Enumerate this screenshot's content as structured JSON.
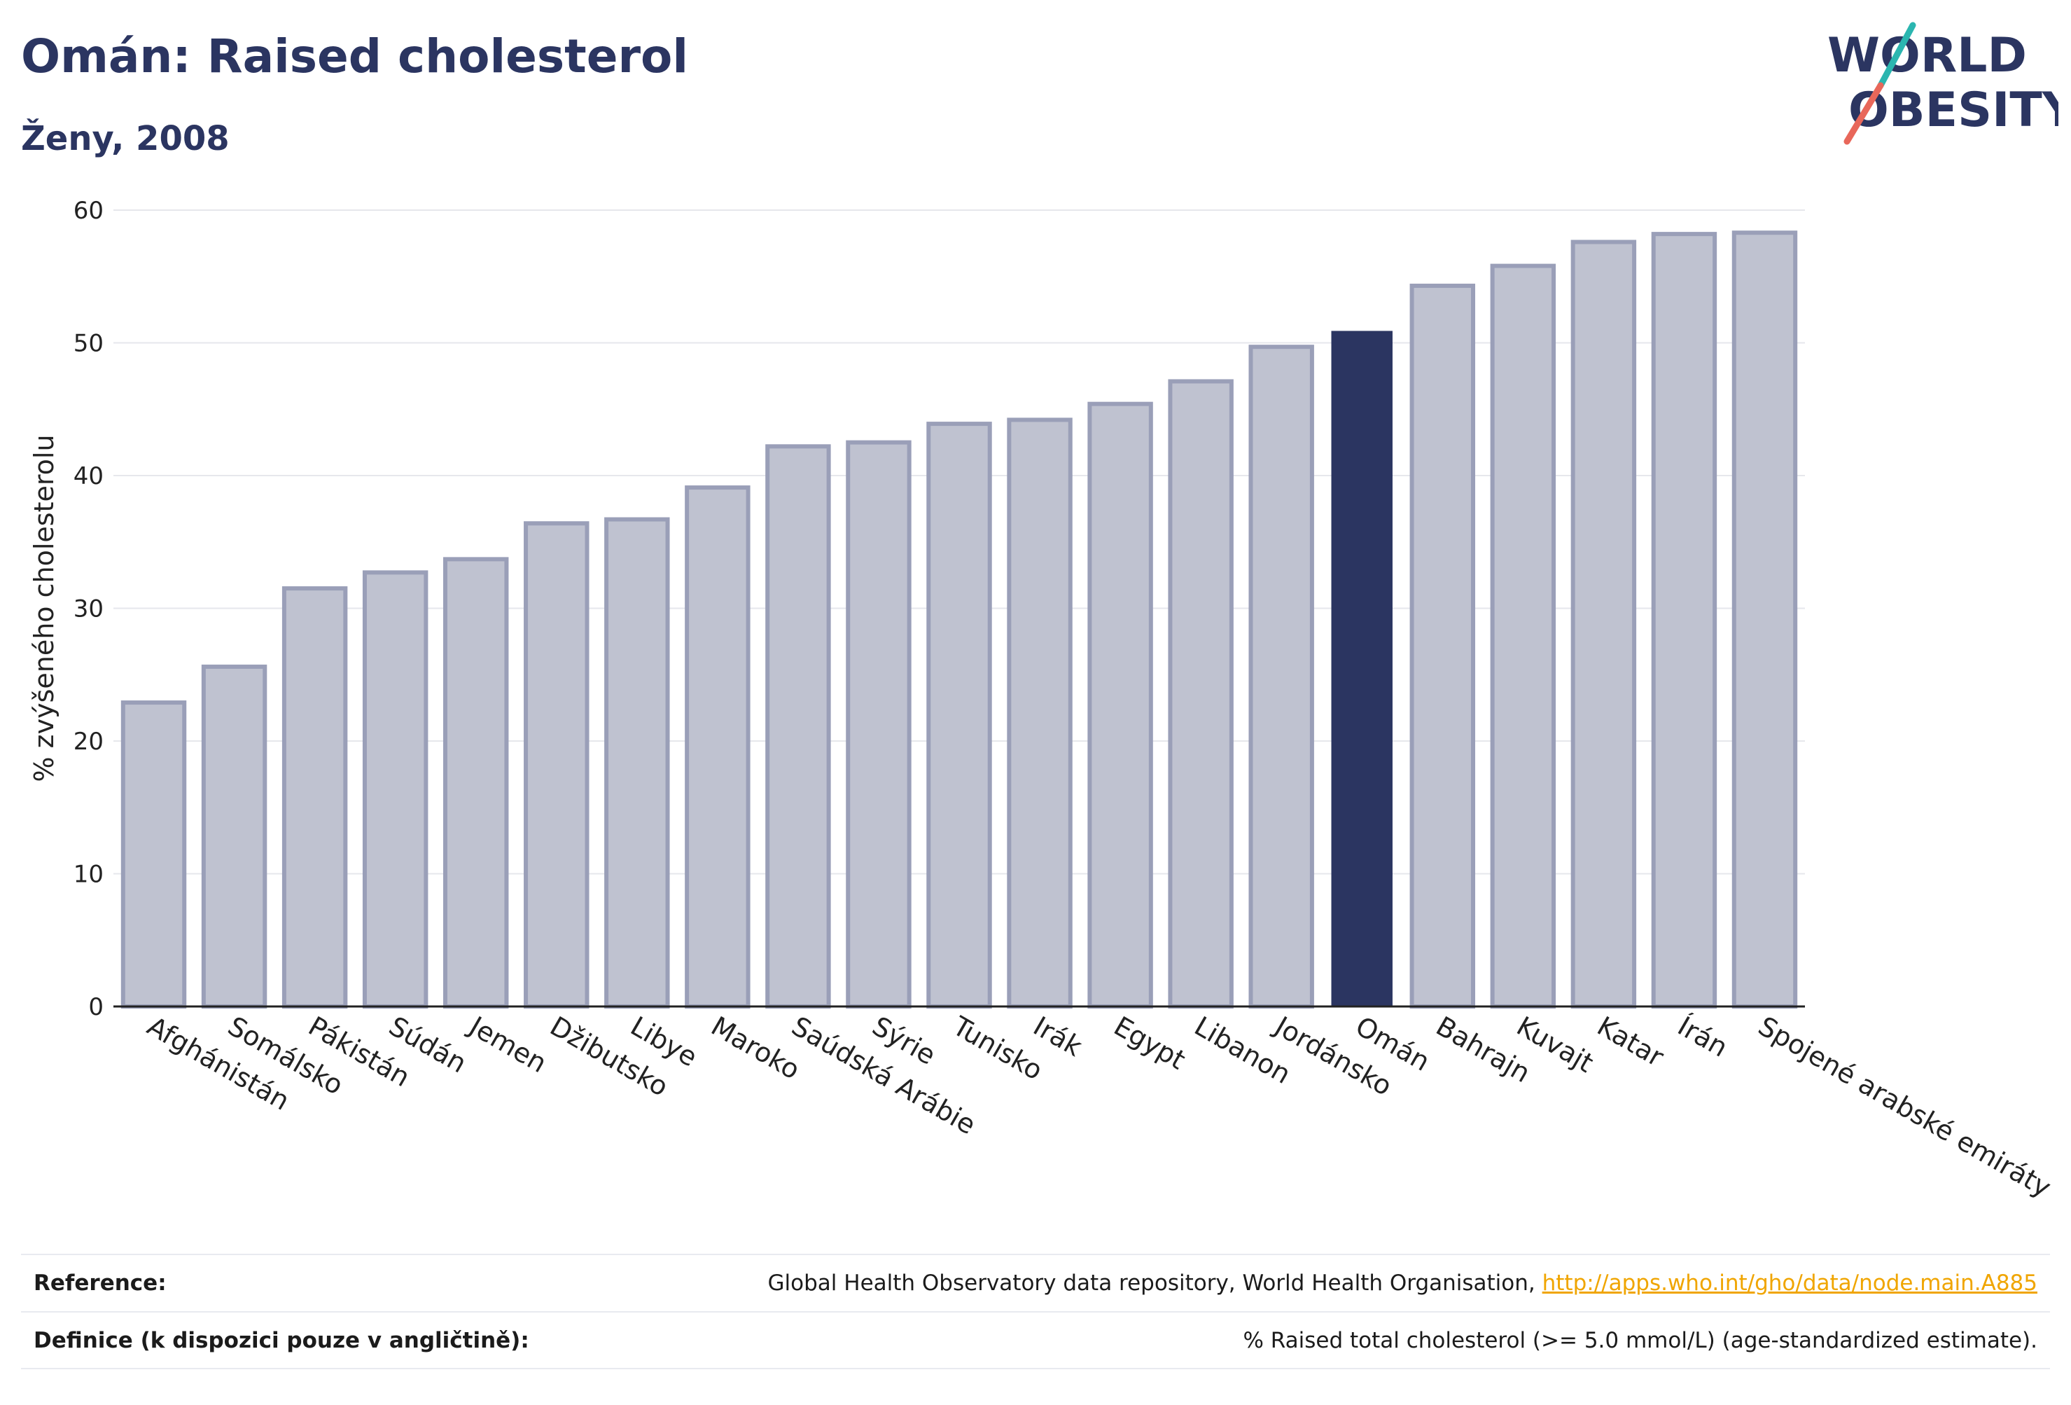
{
  "header": {
    "title": "Omán: Raised cholesterol",
    "subtitle": "Ženy, 2008",
    "logo_text": "WORLD OBESITY"
  },
  "colors": {
    "highlight_bar": "#2b3561",
    "other_bar_fill": "#bfc2d0",
    "other_bar_stroke": "#9a9fb8",
    "title": "#2b3561",
    "link": "#f0a500",
    "logo_accent_teal": "#2bb6b0",
    "logo_accent_red": "#e8675a"
  },
  "chart_data": {
    "type": "bar",
    "ylabel": "% zvýšeného cholesterolu",
    "ylim": [
      0,
      60
    ],
    "yticks": [
      0,
      10,
      20,
      30,
      40,
      50,
      60
    ],
    "grid": true,
    "highlight": "Omán",
    "categories": [
      "Afghánistán",
      "Somálsko",
      "Pákistán",
      "Súdán",
      "Jemen",
      "Džibutsko",
      "Libye",
      "Maroko",
      "Saúdská Arábie",
      "Sýrie",
      "Tunisko",
      "Irák",
      "Egypt",
      "Libanon",
      "Jordánsko",
      "Omán",
      "Bahrajn",
      "Kuvajt",
      "Katar",
      "Írán",
      "Spojené arabské emiráty"
    ],
    "values": [
      22.9,
      25.6,
      31.5,
      32.7,
      33.7,
      36.4,
      36.7,
      39.1,
      42.2,
      42.5,
      43.9,
      44.2,
      45.4,
      47.1,
      49.7,
      50.9,
      54.3,
      55.8,
      57.6,
      58.2,
      58.3
    ]
  },
  "footer": {
    "reference_label": "Reference:",
    "reference_text": "Global Health Observatory data repository, World Health Organisation, ",
    "reference_link": "http://apps.who.int/gho/data/node.main.A885",
    "definition_label": "Definice (k dispozici pouze v angličtině):",
    "definition_text": "% Raised total cholesterol (>= 5.0 mmol/L) (age-standardized estimate)."
  }
}
